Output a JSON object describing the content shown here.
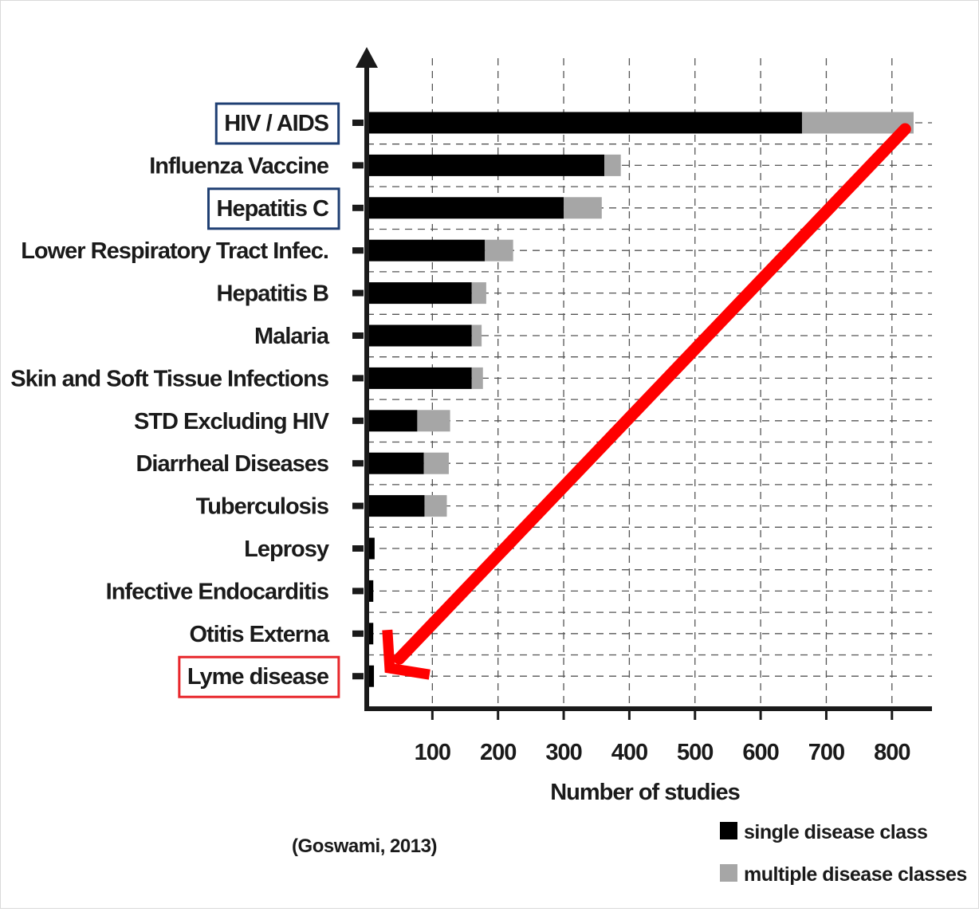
{
  "chart_data": {
    "type": "bar",
    "orientation": "horizontal",
    "stacked": true,
    "categories": [
      "HIV / AIDS",
      "Influenza Vaccine",
      "Hepatitis C",
      "Lower Respiratory Tract Infec.",
      "Hepatitis B",
      "Malaria",
      "Skin and Soft Tissue Infections",
      "STD Excluding HIV",
      "Diarrheal Diseases",
      "Tuberculosis",
      "Leprosy",
      "Infective Endocarditis",
      "Otitis Externa",
      "Lyme disease"
    ],
    "series": [
      {
        "name": "single disease class",
        "color": "#000000",
        "values": [
          663,
          362,
          300,
          180,
          160,
          160,
          160,
          77,
          87,
          88,
          12,
          10,
          10,
          11
        ]
      },
      {
        "name": "multiple disease classes",
        "color": "#a6a6a6",
        "values": [
          170,
          25,
          58,
          43,
          22,
          15,
          17,
          50,
          38,
          34,
          0,
          0,
          0,
          0
        ]
      }
    ],
    "xlabel": "Number of studies",
    "xticks": [
      100,
      200,
      300,
      400,
      500,
      600,
      700,
      800
    ],
    "xlim": [
      0,
      870
    ],
    "grid": true,
    "legend_position": "bottom-right",
    "highlighted_categories": {
      "blue": [
        "HIV / AIDS",
        "Hepatitis C"
      ],
      "red": [
        "Lyme disease"
      ]
    },
    "annotation_arrow": {
      "color": "#ff0000",
      "from": {
        "category": "HIV / AIDS",
        "value": 820
      },
      "to": {
        "category": "Lyme disease",
        "value": 35
      }
    },
    "source": "(Goswami, 2013)"
  },
  "colors": {
    "highlight_blue": "#1f3f73",
    "highlight_red": "#e8262b",
    "arrow": "#ff0000",
    "grid": "#555555"
  }
}
